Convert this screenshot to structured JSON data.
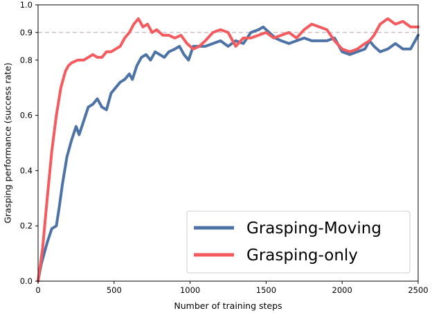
{
  "chart_data": {
    "type": "line",
    "title": "",
    "xlabel": "Number of training steps",
    "ylabel": "Grasping performance (success rate)",
    "xlim": [
      0,
      2500
    ],
    "ylim": [
      0,
      1.0
    ],
    "x_ticks": [
      0,
      500,
      1000,
      1500,
      2000,
      2500
    ],
    "y_ticks": [
      0.0,
      0.2,
      0.4,
      0.6,
      0.8,
      0.9,
      1.0
    ],
    "x_tick_labels": [
      "0",
      "500",
      "1000",
      "1500",
      "2000",
      "2500"
    ],
    "y_tick_labels": [
      "0.0",
      "0.2",
      "0.4",
      "0.6",
      "0.8",
      "0.9",
      "1.0"
    ],
    "reference_line": {
      "y": 0.9,
      "style": "dashed",
      "color": "#b9a4aa"
    },
    "grid": false,
    "legend_position": "lower-right",
    "series": [
      {
        "name": "Grasping-Moving",
        "color": "#4c72a6",
        "points": [
          [
            0,
            0.0
          ],
          [
            20,
            0.06
          ],
          [
            40,
            0.1
          ],
          [
            60,
            0.14
          ],
          [
            90,
            0.19
          ],
          [
            120,
            0.2
          ],
          [
            140,
            0.27
          ],
          [
            160,
            0.35
          ],
          [
            190,
            0.45
          ],
          [
            220,
            0.51
          ],
          [
            250,
            0.56
          ],
          [
            270,
            0.53
          ],
          [
            300,
            0.58
          ],
          [
            330,
            0.63
          ],
          [
            360,
            0.64
          ],
          [
            390,
            0.66
          ],
          [
            420,
            0.63
          ],
          [
            450,
            0.62
          ],
          [
            480,
            0.68
          ],
          [
            510,
            0.7
          ],
          [
            540,
            0.72
          ],
          [
            570,
            0.73
          ],
          [
            600,
            0.75
          ],
          [
            620,
            0.73
          ],
          [
            650,
            0.78
          ],
          [
            680,
            0.81
          ],
          [
            710,
            0.82
          ],
          [
            740,
            0.8
          ],
          [
            770,
            0.83
          ],
          [
            800,
            0.82
          ],
          [
            830,
            0.81
          ],
          [
            860,
            0.83
          ],
          [
            900,
            0.84
          ],
          [
            930,
            0.85
          ],
          [
            960,
            0.82
          ],
          [
            990,
            0.8
          ],
          [
            1020,
            0.85
          ],
          [
            1060,
            0.85
          ],
          [
            1100,
            0.85
          ],
          [
            1150,
            0.86
          ],
          [
            1200,
            0.87
          ],
          [
            1250,
            0.85
          ],
          [
            1300,
            0.87
          ],
          [
            1350,
            0.86
          ],
          [
            1400,
            0.9
          ],
          [
            1450,
            0.91
          ],
          [
            1480,
            0.92
          ],
          [
            1520,
            0.9
          ],
          [
            1560,
            0.88
          ],
          [
            1600,
            0.87
          ],
          [
            1650,
            0.86
          ],
          [
            1700,
            0.87
          ],
          [
            1750,
            0.88
          ],
          [
            1800,
            0.87
          ],
          [
            1850,
            0.87
          ],
          [
            1900,
            0.87
          ],
          [
            1950,
            0.88
          ],
          [
            2000,
            0.83
          ],
          [
            2050,
            0.82
          ],
          [
            2100,
            0.83
          ],
          [
            2150,
            0.84
          ],
          [
            2180,
            0.87
          ],
          [
            2210,
            0.85
          ],
          [
            2250,
            0.83
          ],
          [
            2300,
            0.84
          ],
          [
            2350,
            0.86
          ],
          [
            2400,
            0.84
          ],
          [
            2450,
            0.84
          ],
          [
            2480,
            0.87
          ],
          [
            2500,
            0.89
          ]
        ]
      },
      {
        "name": "Grasping-only",
        "color": "#f45b5f",
        "points": [
          [
            0,
            0.0
          ],
          [
            30,
            0.12
          ],
          [
            60,
            0.3
          ],
          [
            90,
            0.47
          ],
          [
            120,
            0.6
          ],
          [
            150,
            0.7
          ],
          [
            180,
            0.76
          ],
          [
            200,
            0.78
          ],
          [
            220,
            0.79
          ],
          [
            260,
            0.8
          ],
          [
            300,
            0.8
          ],
          [
            330,
            0.81
          ],
          [
            360,
            0.82
          ],
          [
            390,
            0.81
          ],
          [
            420,
            0.81
          ],
          [
            450,
            0.83
          ],
          [
            480,
            0.83
          ],
          [
            510,
            0.84
          ],
          [
            540,
            0.85
          ],
          [
            570,
            0.88
          ],
          [
            600,
            0.9
          ],
          [
            630,
            0.93
          ],
          [
            660,
            0.95
          ],
          [
            690,
            0.92
          ],
          [
            720,
            0.93
          ],
          [
            750,
            0.9
          ],
          [
            780,
            0.91
          ],
          [
            820,
            0.89
          ],
          [
            860,
            0.89
          ],
          [
            900,
            0.88
          ],
          [
            940,
            0.89
          ],
          [
            980,
            0.86
          ],
          [
            1020,
            0.84
          ],
          [
            1060,
            0.85
          ],
          [
            1100,
            0.87
          ],
          [
            1150,
            0.9
          ],
          [
            1200,
            0.91
          ],
          [
            1250,
            0.9
          ],
          [
            1300,
            0.85
          ],
          [
            1350,
            0.88
          ],
          [
            1400,
            0.88
          ],
          [
            1450,
            0.89
          ],
          [
            1500,
            0.9
          ],
          [
            1550,
            0.88
          ],
          [
            1600,
            0.89
          ],
          [
            1650,
            0.9
          ],
          [
            1700,
            0.88
          ],
          [
            1750,
            0.91
          ],
          [
            1800,
            0.93
          ],
          [
            1850,
            0.92
          ],
          [
            1900,
            0.91
          ],
          [
            1950,
            0.87
          ],
          [
            2000,
            0.84
          ],
          [
            2050,
            0.83
          ],
          [
            2100,
            0.84
          ],
          [
            2150,
            0.86
          ],
          [
            2180,
            0.87
          ],
          [
            2210,
            0.89
          ],
          [
            2250,
            0.93
          ],
          [
            2300,
            0.95
          ],
          [
            2350,
            0.93
          ],
          [
            2400,
            0.94
          ],
          [
            2450,
            0.92
          ],
          [
            2500,
            0.92
          ]
        ]
      }
    ]
  }
}
